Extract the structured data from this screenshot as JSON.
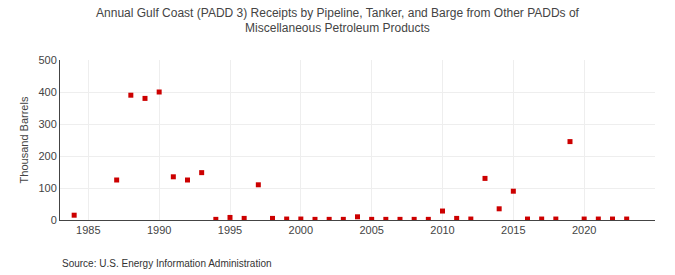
{
  "chart_data": {
    "type": "scatter",
    "title": "Annual Gulf Coast (PADD 3) Receipts by Pipeline, Tanker, and Barge from Other PADDs of\nMiscellaneous Petroleum Products",
    "ylabel": "Thousand Barrels",
    "annotations": [
      "Source: U.S. Energy Information Administration"
    ],
    "color": "#cc0000",
    "marker": "square",
    "grid": true,
    "xlim": [
      1983,
      2025
    ],
    "xticks": [
      1985,
      1990,
      1995,
      2000,
      2005,
      2010,
      2015,
      2020
    ],
    "ylim": [
      0,
      500
    ],
    "yticks": [
      0,
      100,
      200,
      300,
      400,
      500
    ],
    "x": [
      1984,
      1987,
      1988,
      1989,
      1990,
      1991,
      1992,
      1993,
      1994,
      1995,
      1996,
      1997,
      1998,
      1999,
      2000,
      2001,
      2002,
      2003,
      2004,
      2005,
      2006,
      2007,
      2008,
      2009,
      2010,
      2011,
      2012,
      2013,
      2014,
      2015,
      2016,
      2017,
      2018,
      2019,
      2020,
      2021,
      2022,
      2023
    ],
    "values": [
      15,
      125,
      390,
      380,
      400,
      135,
      125,
      148,
      2,
      8,
      5,
      110,
      5,
      3,
      3,
      2,
      2,
      2,
      10,
      2,
      2,
      2,
      2,
      2,
      28,
      5,
      3,
      130,
      35,
      90,
      3,
      3,
      3,
      245,
      3,
      3,
      3,
      3
    ]
  }
}
